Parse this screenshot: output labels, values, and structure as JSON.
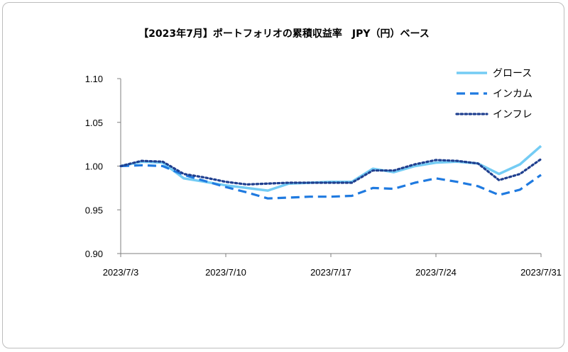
{
  "chart_data": {
    "type": "line",
    "title": "【2023年7月】ポートフォリオの累積収益率　JPY（円）ベース",
    "xlabel": "",
    "ylabel": "",
    "ylim": [
      0.9,
      1.1
    ],
    "yticks": [
      "1.10",
      "1.05",
      "1.00",
      "0.95",
      "0.90"
    ],
    "ytick_values": [
      1.1,
      1.05,
      1.0,
      0.95,
      0.9
    ],
    "x": [
      "2023/7/3",
      "2023/7/4",
      "2023/7/5",
      "2023/7/6",
      "2023/7/7",
      "2023/7/10",
      "2023/7/11",
      "2023/7/12",
      "2023/7/13",
      "2023/7/14",
      "2023/7/17",
      "2023/7/18",
      "2023/7/19",
      "2023/7/20",
      "2023/7/21",
      "2023/7/24",
      "2023/7/25",
      "2023/7/26",
      "2023/7/27",
      "2023/7/28",
      "2023/7/31"
    ],
    "xticks": [
      {
        "label": "2023/7/3",
        "index": 0
      },
      {
        "label": "2023/7/10",
        "index": 5
      },
      {
        "label": "2023/7/17",
        "index": 10
      },
      {
        "label": "2023/7/24",
        "index": 15
      },
      {
        "label": "2023/7/31",
        "index": 20
      }
    ],
    "grid": false,
    "legend_position": "top-right",
    "series": [
      {
        "name": "グロース",
        "color": "#74ccf4",
        "style": "solid",
        "values": [
          1.0,
          1.005,
          1.004,
          0.986,
          0.982,
          0.978,
          0.975,
          0.972,
          0.98,
          0.981,
          0.982,
          0.982,
          0.997,
          0.993,
          1.0,
          1.004,
          1.005,
          1.003,
          0.991,
          1.002,
          1.023
        ]
      },
      {
        "name": "インカム",
        "color": "#1f7ae0",
        "style": "dashed",
        "values": [
          1.0,
          1.001,
          1.0,
          0.99,
          0.983,
          0.976,
          0.97,
          0.963,
          0.964,
          0.965,
          0.965,
          0.966,
          0.975,
          0.974,
          0.981,
          0.986,
          0.982,
          0.977,
          0.967,
          0.973,
          0.99
        ]
      },
      {
        "name": "インフレ",
        "color": "#1f3f8f",
        "style": "dotted",
        "values": [
          1.0,
          1.006,
          1.005,
          0.991,
          0.987,
          0.982,
          0.979,
          0.98,
          0.981,
          0.981,
          0.981,
          0.981,
          0.995,
          0.995,
          1.002,
          1.007,
          1.006,
          1.003,
          0.984,
          0.991,
          1.008
        ]
      }
    ]
  }
}
